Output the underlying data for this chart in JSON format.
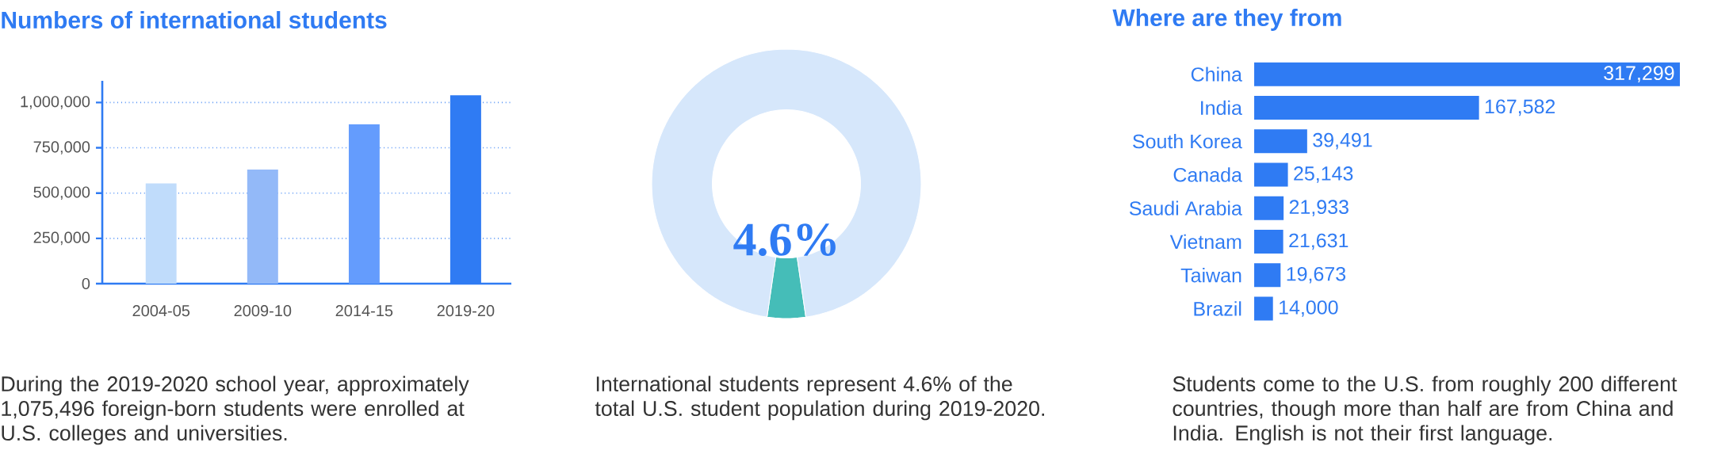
{
  "chart_data": [
    {
      "type": "bar",
      "title": "Numbers of international students",
      "categories": [
        "2004-05",
        "2009-10",
        "2014-15",
        "2019-20"
      ],
      "values": [
        553000,
        630000,
        880000,
        1040000
      ],
      "colors": [
        "#c0dcfb",
        "#93b9f8",
        "#649cfd",
        "#2f7bf3"
      ],
      "ylim": [
        0,
        1120000
      ],
      "yticks": [
        0,
        {
          "value": 250000,
          "label": "250,000"
        },
        {
          "value": 500000,
          "label": "500,000"
        },
        {
          "value": 750000,
          "label": "750,000"
        },
        {
          "value": 1000000,
          "label": "1,000,000"
        }
      ],
      "grid": "y",
      "annotations": [
        "During the 2019-2020 school year, approximately 1,075,496 foreign-born students were enrolled at U.S. colleges and universities."
      ]
    },
    {
      "type": "donut",
      "categories": [
        null,
        null
      ],
      "values": [
        4.6,
        95.4
      ],
      "colors": [
        "#45bdb8",
        "#d6e7fb"
      ],
      "value_labels": [
        "4.6%",
        null
      ],
      "annotations": [
        "International students represent 4.6% of the total U.S. student population during 2019-2020."
      ]
    },
    {
      "type": "bar",
      "orientation": "horizontal",
      "title": "Where are they from",
      "categories": [
        "China",
        "India",
        "South Korea",
        "Canada",
        "Saudi Arabia",
        "Vietnam",
        "Taiwan",
        "Brazil"
      ],
      "values": [
        317299,
        167582,
        39491,
        25143,
        21933,
        21631,
        19673,
        14000
      ],
      "value_labels": [
        "317,299",
        "167,582",
        "39,491",
        "25,143",
        "21,933",
        "21,631",
        "19,673",
        "14,000"
      ],
      "color": "#2f7bf3",
      "tick_labels": "y",
      "annotations": [
        "Students come to the U.S. from roughly 200 different countries, though more than half are from China and India. English is not their first language."
      ]
    }
  ]
}
